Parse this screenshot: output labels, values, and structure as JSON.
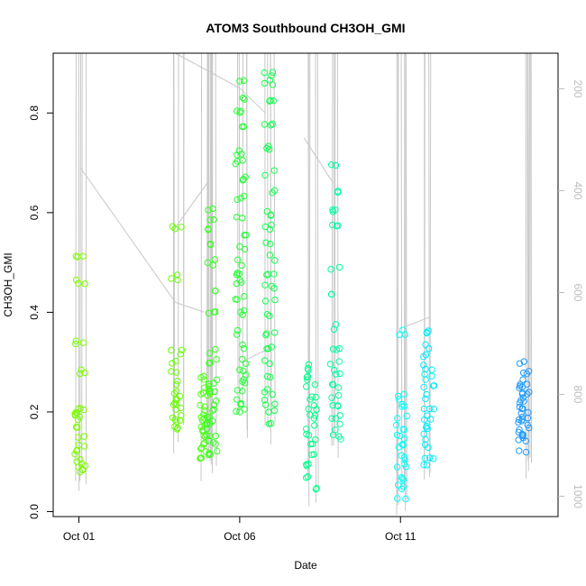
{
  "chart_data": {
    "type": "scatter",
    "title": "ATOM3 Southbound CH3OH_GMI",
    "xlabel": "Date",
    "ylabel": "CH3OH_GMI",
    "x_ticks": [
      "Oct 01",
      "Oct 06",
      "Oct 11"
    ],
    "y_ticks": [
      "0.0",
      "0.2",
      "0.4",
      "0.6",
      "0.8"
    ],
    "y2_ticks": [
      "200",
      "400",
      "600",
      "800",
      "1000"
    ],
    "x_range_days": [
      -0.8,
      14.9
    ],
    "ylim": [
      -0.01,
      0.92
    ],
    "y2lim": [
      1040,
      130
    ],
    "y2_reversed": true,
    "grid": false,
    "legend": "none",
    "marker": "open-circle",
    "colors": {
      "flight_track": "#c8c8c8",
      "right_axis": "#bdbdbd",
      "frame": "#000000"
    },
    "series": [
      {
        "day": 0.0,
        "color": "#7CFC00",
        "values": [
          0.08,
          0.09,
          0.1,
          0.11,
          0.12,
          0.13,
          0.15,
          0.17,
          0.19,
          0.2,
          0.21,
          0.28,
          0.34,
          0.46,
          0.51
        ]
      },
      {
        "day": 3.0,
        "color": "#66FF00",
        "values": [
          0.17,
          0.18,
          0.19,
          0.21,
          0.22,
          0.23,
          0.24,
          0.26,
          0.28,
          0.3,
          0.32,
          0.47,
          0.57
        ]
      },
      {
        "day": 3.9,
        "color": "#4DFF14",
        "values": [
          0.11,
          0.12,
          0.13,
          0.14,
          0.15,
          0.16,
          0.17,
          0.18,
          0.19,
          0.2,
          0.21,
          0.23,
          0.24,
          0.25,
          0.27
        ]
      },
      {
        "day": 4.1,
        "color": "#33FF1F",
        "values": [
          0.12,
          0.14,
          0.15,
          0.17,
          0.18,
          0.19,
          0.2,
          0.22,
          0.24,
          0.26,
          0.3,
          0.32,
          0.4,
          0.44,
          0.5,
          0.54,
          0.57,
          0.59,
          0.61
        ]
      },
      {
        "day": 5.0,
        "color": "#22FF33",
        "values": [
          0.2,
          0.22,
          0.24,
          0.26,
          0.28,
          0.3,
          0.33,
          0.36,
          0.4,
          0.43,
          0.46,
          0.48,
          0.5,
          0.53,
          0.56,
          0.59,
          0.63,
          0.67,
          0.7,
          0.72,
          0.77,
          0.8,
          0.83,
          0.86
        ]
      },
      {
        "day": 5.9,
        "color": "#11FF4D",
        "values": [
          0.18,
          0.2,
          0.22,
          0.24,
          0.27,
          0.3,
          0.33,
          0.36,
          0.39,
          0.42,
          0.45,
          0.48,
          0.51,
          0.54,
          0.57,
          0.6,
          0.64,
          0.68,
          0.73,
          0.78,
          0.82,
          0.86,
          0.88
        ]
      },
      {
        "day": 7.2,
        "color": "#00FF88",
        "values": [
          0.05,
          0.07,
          0.09,
          0.11,
          0.13,
          0.15,
          0.17,
          0.19,
          0.21,
          0.23,
          0.25,
          0.27,
          0.29
        ]
      },
      {
        "day": 7.95,
        "color": "#00FFA0",
        "values": [
          0.15,
          0.17,
          0.19,
          0.21,
          0.23,
          0.25,
          0.28,
          0.3,
          0.33,
          0.37,
          0.44,
          0.49,
          0.57,
          0.6,
          0.64,
          0.7
        ]
      },
      {
        "day": 10.0,
        "color": "#00FFFF",
        "values": [
          0.03,
          0.05,
          0.07,
          0.09,
          0.11,
          0.13,
          0.15,
          0.17,
          0.19,
          0.21,
          0.23,
          0.36
        ]
      },
      {
        "day": 10.85,
        "color": "#00EEFF",
        "values": [
          0.09,
          0.11,
          0.13,
          0.15,
          0.17,
          0.19,
          0.21,
          0.23,
          0.25,
          0.27,
          0.29,
          0.31,
          0.33,
          0.36
        ]
      },
      {
        "day": 13.8,
        "color": "#1E9BFF",
        "values": [
          0.12,
          0.14,
          0.15,
          0.16,
          0.17,
          0.18,
          0.19,
          0.2,
          0.21,
          0.22,
          0.23,
          0.24,
          0.25,
          0.26,
          0.28,
          0.3
        ]
      }
    ]
  }
}
